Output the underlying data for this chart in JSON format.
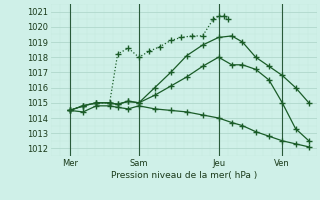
{
  "bg_color": "#cff0e8",
  "grid_major_color": "#b0d8cc",
  "grid_minor_color": "#c5e8de",
  "line_color": "#1a5c28",
  "title": "Pression niveau de la mer( hPa )",
  "ylim": [
    1011.5,
    1021.5
  ],
  "yticks": [
    1012,
    1013,
    1014,
    1015,
    1016,
    1017,
    1018,
    1019,
    1020,
    1021
  ],
  "xlim": [
    0,
    10.0
  ],
  "vline_positions": [
    0.7,
    3.3,
    6.3,
    8.7
  ],
  "day_positions": [
    0.7,
    3.3,
    6.3,
    8.7
  ],
  "day_labels": [
    "Mer",
    "Sam",
    "Jeu",
    "Ven"
  ],
  "line1_x": [
    0.7,
    1.2,
    1.7,
    2.2,
    2.5,
    2.9,
    3.3,
    3.7,
    4.1,
    4.5,
    4.9,
    5.3,
    5.7,
    6.1,
    6.3,
    6.5,
    6.65
  ],
  "line1_y": [
    1014.5,
    1014.8,
    1015.0,
    1015.0,
    1018.2,
    1018.6,
    1018.0,
    1018.4,
    1018.7,
    1019.1,
    1019.3,
    1019.4,
    1019.4,
    1020.5,
    1020.7,
    1020.7,
    1020.5
  ],
  "line2_x": [
    0.7,
    1.2,
    1.7,
    2.2,
    2.5,
    2.9,
    3.3,
    3.9,
    4.5,
    5.1,
    5.7,
    6.3,
    6.8,
    7.2,
    7.7,
    8.2,
    8.7,
    9.2,
    9.7
  ],
  "line2_y": [
    1014.5,
    1014.8,
    1015.0,
    1015.0,
    1014.9,
    1015.1,
    1015.0,
    1016.0,
    1017.0,
    1018.1,
    1018.8,
    1019.3,
    1019.4,
    1019.0,
    1018.0,
    1017.4,
    1016.8,
    1016.0,
    1015.0
  ],
  "line3_x": [
    0.7,
    1.2,
    1.7,
    2.2,
    2.5,
    2.9,
    3.3,
    3.9,
    4.5,
    5.1,
    5.7,
    6.3,
    6.8,
    7.2,
    7.7,
    8.2,
    8.7,
    9.2,
    9.7
  ],
  "line3_y": [
    1014.5,
    1014.8,
    1015.0,
    1015.0,
    1014.9,
    1015.1,
    1015.0,
    1015.5,
    1016.1,
    1016.7,
    1017.4,
    1018.0,
    1017.5,
    1017.5,
    1017.2,
    1016.5,
    1015.0,
    1013.3,
    1012.5
  ],
  "line4_x": [
    0.7,
    1.2,
    1.7,
    2.2,
    2.5,
    2.9,
    3.3,
    3.9,
    4.5,
    5.1,
    5.7,
    6.3,
    6.8,
    7.2,
    7.7,
    8.2,
    8.7,
    9.2,
    9.7
  ],
  "line4_y": [
    1014.5,
    1014.4,
    1014.8,
    1014.8,
    1014.7,
    1014.6,
    1014.8,
    1014.6,
    1014.5,
    1014.4,
    1014.2,
    1014.0,
    1013.7,
    1013.5,
    1013.1,
    1012.8,
    1012.5,
    1012.3,
    1012.1
  ],
  "line_start_x": [
    0.7
  ],
  "line_start_y": [
    1014.5
  ]
}
